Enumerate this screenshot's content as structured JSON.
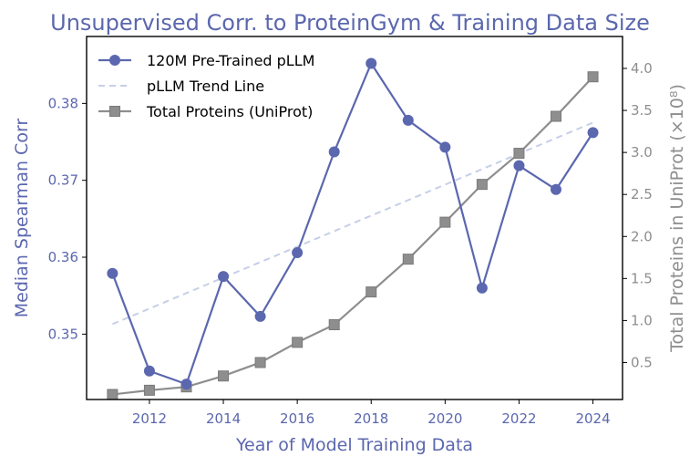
{
  "chart_data": {
    "type": "line",
    "title": "Unsupervised Corr. to ProteinGym & Training Data Size",
    "xlabel": "Year of Model Training Data",
    "ylabel": "Median Spearman Corr",
    "y2label": "Total Proteins in UniProt (×10⁸)",
    "x": [
      2011,
      2012,
      2013,
      2014,
      2015,
      2016,
      2017,
      2018,
      2019,
      2020,
      2021,
      2022,
      2023,
      2024
    ],
    "xlim": [
      2010.3,
      2024.8
    ],
    "ylim": [
      0.3415,
      0.3887
    ],
    "y2lim": [
      0.06,
      4.38
    ],
    "xticks": [
      2012,
      2014,
      2016,
      2018,
      2020,
      2022,
      2024
    ],
    "yticks": [
      0.35,
      0.36,
      0.37,
      0.38
    ],
    "y2ticks": [
      0.5,
      1.0,
      1.5,
      2.0,
      2.5,
      3.0,
      3.5,
      4.0
    ],
    "grid": false,
    "legend_position": "top-left",
    "series": [
      {
        "name": "120M Pre-Trained pLLM",
        "axis": "left",
        "color": "#5b67ae",
        "marker": "circle",
        "values": [
          0.3579,
          0.3452,
          0.3435,
          0.3575,
          0.3523,
          0.3606,
          0.3737,
          0.3852,
          0.3778,
          0.3743,
          0.356,
          0.3719,
          0.3688,
          0.3762
        ]
      },
      {
        "name": "pLLM Trend Line",
        "axis": "left",
        "color": "#c6cfe7",
        "style": "dashed",
        "x": [
          2011,
          2024
        ],
        "values": [
          0.3513,
          0.3775
        ]
      },
      {
        "name": "Total Proteins (UniProt)",
        "axis": "right",
        "color": "#8e8e8e",
        "marker": "square",
        "values": [
          0.12,
          0.17,
          0.21,
          0.34,
          0.5,
          0.74,
          0.95,
          1.34,
          1.73,
          2.17,
          2.62,
          2.99,
          3.43,
          3.9
        ]
      }
    ]
  },
  "colors": {
    "left_axis": "#5b67ae",
    "right_axis": "#8e8e8e",
    "title": "#5b67ae"
  }
}
